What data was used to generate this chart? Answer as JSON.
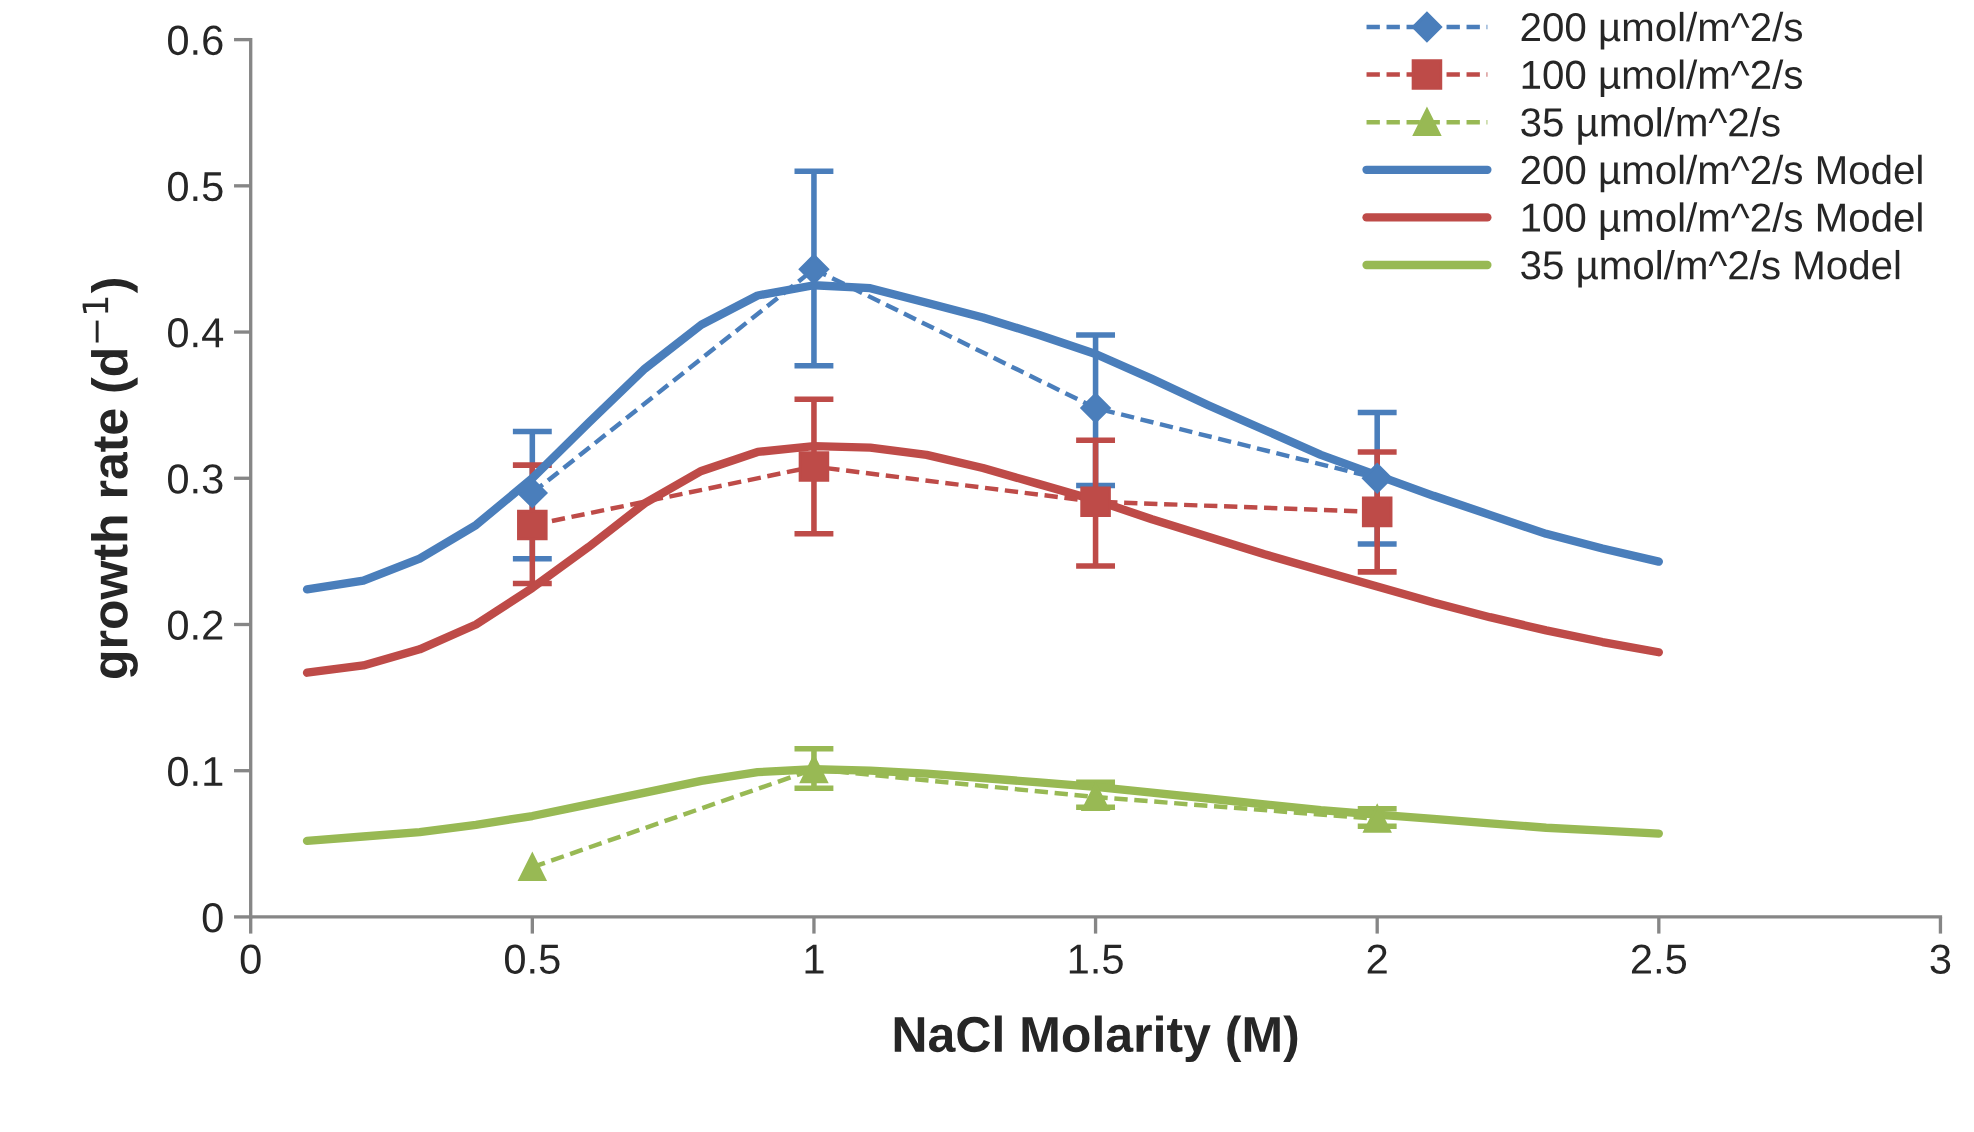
{
  "chart_data": {
    "type": "line",
    "xlabel": "NaCl Molarity (M)",
    "ylabel": "growth rate (d$^{−1}$)",
    "xlim": [
      0,
      3
    ],
    "xticks": [
      0,
      0.5,
      1,
      1.5,
      2,
      2.5,
      3
    ],
    "ylim": [
      0,
      0.6
    ],
    "yticks": [
      0,
      0.1,
      0.2,
      0.3,
      0.4,
      0.5,
      0.6
    ],
    "grid": false,
    "legend": "top right",
    "series": [
      {
        "name": "200 µmol/m^2/s",
        "color": "#4a7ebb",
        "marker": "diamond",
        "line_style": "dashed",
        "x": [
          0.5,
          1,
          1.5,
          2
        ],
        "values": [
          0.29,
          0.443,
          0.348,
          0.3
        ],
        "errors": [
          [
            0.245,
            0.332
          ],
          [
            0.377,
            0.51
          ],
          [
            0.295,
            0.398
          ],
          [
            0.255,
            0.345
          ]
        ]
      },
      {
        "name": "100 µmol/m^2/s",
        "color": "#be4b48",
        "marker": "square",
        "line_style": "dashed",
        "x": [
          0.5,
          1,
          1.5,
          2
        ],
        "values": [
          0.268,
          0.308,
          0.284,
          0.277
        ],
        "errors": [
          [
            0.228,
            0.309
          ],
          [
            0.262,
            0.354
          ],
          [
            0.24,
            0.326
          ],
          [
            0.236,
            0.318
          ]
        ]
      },
      {
        "name": "35 µmol/m^2/s",
        "color": "#98b954",
        "marker": "triangle",
        "line_style": "dashed",
        "x": [
          0.5,
          1,
          1.5,
          2
        ],
        "values": [
          0.034,
          0.101,
          0.082,
          0.067
        ],
        "errors": [
          null,
          [
            0.088,
            0.115
          ],
          [
            0.075,
            0.092
          ],
          [
            0.062,
            0.074
          ]
        ]
      },
      {
        "name": "200 µmol/m^2/s Model",
        "color": "#4a7ebb",
        "marker": "none",
        "line_style": "solid",
        "x": [
          0.1,
          0.2,
          0.3,
          0.4,
          0.5,
          0.6,
          0.7,
          0.8,
          0.9,
          1.0,
          1.1,
          1.2,
          1.3,
          1.4,
          1.5,
          1.6,
          1.7,
          1.8,
          1.9,
          2.0,
          2.1,
          2.2,
          2.3,
          2.4,
          2.5
        ],
        "values": [
          0.224,
          0.23,
          0.245,
          0.268,
          0.3,
          0.338,
          0.375,
          0.405,
          0.425,
          0.432,
          0.43,
          0.42,
          0.41,
          0.398,
          0.385,
          0.368,
          0.35,
          0.333,
          0.316,
          0.302,
          0.288,
          0.275,
          0.262,
          0.252,
          0.243
        ]
      },
      {
        "name": "100 µmol/m^2/s Model",
        "color": "#be4b48",
        "marker": "none",
        "line_style": "solid",
        "x": [
          0.1,
          0.2,
          0.3,
          0.4,
          0.5,
          0.6,
          0.7,
          0.8,
          0.9,
          1.0,
          1.1,
          1.2,
          1.3,
          1.4,
          1.5,
          1.6,
          1.7,
          1.8,
          1.9,
          2.0,
          2.1,
          2.2,
          2.3,
          2.4,
          2.5
        ],
        "values": [
          0.167,
          0.172,
          0.183,
          0.2,
          0.225,
          0.253,
          0.283,
          0.305,
          0.318,
          0.322,
          0.321,
          0.316,
          0.307,
          0.296,
          0.285,
          0.272,
          0.26,
          0.248,
          0.237,
          0.226,
          0.215,
          0.205,
          0.196,
          0.188,
          0.181
        ]
      },
      {
        "name": "35 µmol/m^2/s Model",
        "color": "#98b954",
        "marker": "none",
        "line_style": "solid",
        "x": [
          0.1,
          0.2,
          0.3,
          0.4,
          0.5,
          0.6,
          0.7,
          0.8,
          0.9,
          1.0,
          1.1,
          1.2,
          1.3,
          1.4,
          1.5,
          1.6,
          1.7,
          1.8,
          1.9,
          2.0,
          2.1,
          2.2,
          2.3,
          2.4,
          2.5
        ],
        "values": [
          0.052,
          0.055,
          0.058,
          0.063,
          0.069,
          0.077,
          0.085,
          0.093,
          0.099,
          0.101,
          0.1,
          0.098,
          0.095,
          0.092,
          0.089,
          0.085,
          0.081,
          0.077,
          0.073,
          0.07,
          0.067,
          0.064,
          0.061,
          0.059,
          0.057
        ]
      }
    ]
  }
}
